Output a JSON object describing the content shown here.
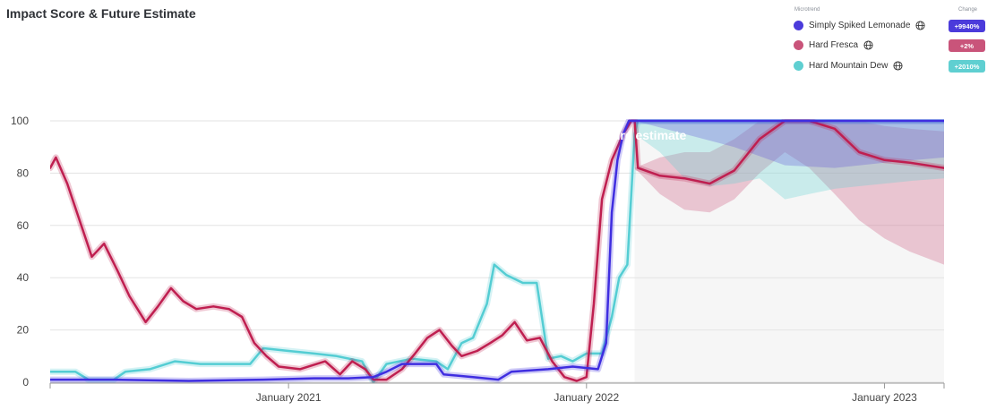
{
  "header": {
    "title": "Impact Score & Future Estimate"
  },
  "legend": {
    "header_name": "Microtrend",
    "header_change": "Change",
    "items": [
      {
        "label": "Simply Spiked Lemonade",
        "change": "+9940%",
        "color": "#4b3bdb",
        "badge_color": "#4b3bdb"
      },
      {
        "label": "Hard Fresca",
        "change": "+2%",
        "color": "#c9547a",
        "badge_color": "#c9547a"
      },
      {
        "label": "Hard Mountain Dew",
        "change": "+2010%",
        "color": "#5fcfd1",
        "badge_color": "#5fcfd1"
      }
    ]
  },
  "chart_data": {
    "type": "line",
    "title": "Impact Score & Future Estimate",
    "xlabel": "",
    "ylabel": "",
    "ylim": [
      0,
      100
    ],
    "y_ticks": [
      0,
      20,
      40,
      60,
      80,
      100
    ],
    "x_range": [
      "2020-03-15",
      "2023-03-15"
    ],
    "x_ticks": [
      {
        "date": "2021-01-01",
        "label": "January 2021"
      },
      {
        "date": "2022-01-01",
        "label": "January 2022"
      },
      {
        "date": "2023-01-01",
        "label": "January 2023"
      }
    ],
    "grid": true,
    "legend_position": "top-right",
    "future_estimate": {
      "label": "Future estimate",
      "start": "2022-03-01"
    },
    "series": [
      {
        "name": "Simply Spiked Lemonade",
        "color": "#3f2ee0",
        "points": [
          [
            "2020-03-15",
            1
          ],
          [
            "2020-06-01",
            1
          ],
          [
            "2020-09-01",
            0.5
          ],
          [
            "2020-12-01",
            1
          ],
          [
            "2021-02-01",
            1.5
          ],
          [
            "2021-03-15",
            1.5
          ],
          [
            "2021-04-15",
            2
          ],
          [
            "2021-05-01",
            4
          ],
          [
            "2021-05-20",
            7
          ],
          [
            "2021-07-01",
            7
          ],
          [
            "2021-07-10",
            3
          ],
          [
            "2021-08-15",
            2
          ],
          [
            "2021-09-15",
            1
          ],
          [
            "2021-10-01",
            4
          ],
          [
            "2021-11-15",
            5
          ],
          [
            "2021-12-15",
            6
          ],
          [
            "2022-01-15",
            5
          ],
          [
            "2022-01-25",
            15
          ],
          [
            "2022-02-01",
            65
          ],
          [
            "2022-02-08",
            85
          ],
          [
            "2022-02-15",
            95
          ],
          [
            "2022-02-22",
            100
          ],
          [
            "2022-03-01",
            100
          ],
          [
            "2022-05-01",
            100
          ],
          [
            "2022-08-01",
            100
          ],
          [
            "2022-11-01",
            100
          ],
          [
            "2023-03-15",
            100
          ]
        ],
        "band_low": [
          [
            "2022-03-01",
            100
          ],
          [
            "2022-05-01",
            95
          ],
          [
            "2022-07-01",
            90
          ],
          [
            "2022-09-01",
            83
          ],
          [
            "2022-11-01",
            82
          ],
          [
            "2023-01-01",
            84
          ],
          [
            "2023-03-15",
            86
          ]
        ],
        "band_high": [
          [
            "2022-03-01",
            100
          ],
          [
            "2022-05-01",
            100
          ],
          [
            "2022-07-01",
            100
          ],
          [
            "2022-09-01",
            100
          ],
          [
            "2022-11-01",
            100
          ],
          [
            "2023-01-01",
            100
          ],
          [
            "2023-03-15",
            100
          ]
        ]
      },
      {
        "name": "Hard Fresca",
        "color": "#bf1f50",
        "points": [
          [
            "2020-03-15",
            82
          ],
          [
            "2020-03-22",
            86
          ],
          [
            "2020-04-05",
            76
          ],
          [
            "2020-04-20",
            62
          ],
          [
            "2020-05-05",
            48
          ],
          [
            "2020-05-20",
            53
          ],
          [
            "2020-06-05",
            43
          ],
          [
            "2020-06-20",
            33
          ],
          [
            "2020-07-10",
            23
          ],
          [
            "2020-07-25",
            29
          ],
          [
            "2020-08-10",
            36
          ],
          [
            "2020-08-25",
            31
          ],
          [
            "2020-09-10",
            28
          ],
          [
            "2020-10-01",
            29
          ],
          [
            "2020-10-20",
            28
          ],
          [
            "2020-11-05",
            25
          ],
          [
            "2020-11-20",
            15
          ],
          [
            "2020-12-05",
            10
          ],
          [
            "2020-12-20",
            6
          ],
          [
            "2021-01-15",
            5
          ],
          [
            "2021-02-15",
            8
          ],
          [
            "2021-03-05",
            3
          ],
          [
            "2021-03-20",
            8
          ],
          [
            "2021-04-05",
            5
          ],
          [
            "2021-04-15",
            1
          ],
          [
            "2021-05-01",
            1
          ],
          [
            "2021-05-20",
            5
          ],
          [
            "2021-06-05",
            11
          ],
          [
            "2021-06-20",
            17
          ],
          [
            "2021-07-05",
            20
          ],
          [
            "2021-07-20",
            14
          ],
          [
            "2021-08-01",
            10
          ],
          [
            "2021-08-20",
            12
          ],
          [
            "2021-09-05",
            15
          ],
          [
            "2021-09-20",
            18
          ],
          [
            "2021-10-05",
            23
          ],
          [
            "2021-10-20",
            16
          ],
          [
            "2021-11-05",
            17
          ],
          [
            "2021-11-20",
            8
          ],
          [
            "2021-12-05",
            2
          ],
          [
            "2021-12-20",
            0.5
          ],
          [
            "2022-01-01",
            2
          ],
          [
            "2022-01-10",
            30
          ],
          [
            "2022-01-20",
            70
          ],
          [
            "2022-02-01",
            85
          ],
          [
            "2022-02-15",
            95
          ],
          [
            "2022-02-25",
            100
          ],
          [
            "2022-03-01",
            100
          ],
          [
            "2022-03-05",
            82
          ],
          [
            "2022-04-01",
            79
          ],
          [
            "2022-05-01",
            78
          ],
          [
            "2022-06-01",
            76
          ],
          [
            "2022-07-01",
            81
          ],
          [
            "2022-08-01",
            93
          ],
          [
            "2022-09-01",
            100
          ],
          [
            "2022-10-01",
            100
          ],
          [
            "2022-11-01",
            97
          ],
          [
            "2022-12-01",
            88
          ],
          [
            "2023-01-01",
            85
          ],
          [
            "2023-02-01",
            84
          ],
          [
            "2023-03-15",
            82
          ]
        ],
        "band_low": [
          [
            "2022-03-01",
            82
          ],
          [
            "2022-04-01",
            72
          ],
          [
            "2022-05-01",
            66
          ],
          [
            "2022-06-01",
            65
          ],
          [
            "2022-07-01",
            70
          ],
          [
            "2022-08-01",
            80
          ],
          [
            "2022-09-01",
            88
          ],
          [
            "2022-10-01",
            82
          ],
          [
            "2022-11-01",
            72
          ],
          [
            "2022-12-01",
            62
          ],
          [
            "2023-01-01",
            55
          ],
          [
            "2023-02-01",
            50
          ],
          [
            "2023-03-15",
            45
          ]
        ],
        "band_high": [
          [
            "2022-03-01",
            82
          ],
          [
            "2022-04-01",
            86
          ],
          [
            "2022-05-01",
            88
          ],
          [
            "2022-06-01",
            88
          ],
          [
            "2022-07-01",
            93
          ],
          [
            "2022-08-01",
            100
          ],
          [
            "2022-09-01",
            100
          ],
          [
            "2022-10-01",
            100
          ],
          [
            "2022-11-01",
            100
          ],
          [
            "2022-12-01",
            100
          ],
          [
            "2023-01-01",
            98
          ],
          [
            "2023-02-01",
            97
          ],
          [
            "2023-03-15",
            96
          ]
        ]
      },
      {
        "name": "Hard Mountain Dew",
        "color": "#54cdd3",
        "points": [
          [
            "2020-03-15",
            4
          ],
          [
            "2020-04-15",
            4
          ],
          [
            "2020-05-01",
            1
          ],
          [
            "2020-06-01",
            1
          ],
          [
            "2020-06-15",
            4
          ],
          [
            "2020-07-15",
            5
          ],
          [
            "2020-08-15",
            8
          ],
          [
            "2020-09-15",
            7
          ],
          [
            "2020-10-15",
            7
          ],
          [
            "2020-11-15",
            7
          ],
          [
            "2020-12-01",
            13
          ],
          [
            "2021-01-01",
            12
          ],
          [
            "2021-02-01",
            11
          ],
          [
            "2021-03-01",
            10
          ],
          [
            "2021-04-01",
            8
          ],
          [
            "2021-04-15",
            0
          ],
          [
            "2021-05-01",
            7
          ],
          [
            "2021-06-01",
            9
          ],
          [
            "2021-07-01",
            8
          ],
          [
            "2021-07-15",
            5
          ],
          [
            "2021-08-01",
            15
          ],
          [
            "2021-08-15",
            17
          ],
          [
            "2021-09-01",
            30
          ],
          [
            "2021-09-10",
            45
          ],
          [
            "2021-09-25",
            41
          ],
          [
            "2021-10-15",
            38
          ],
          [
            "2021-11-01",
            38
          ],
          [
            "2021-11-15",
            9
          ],
          [
            "2021-12-01",
            10
          ],
          [
            "2021-12-15",
            8
          ],
          [
            "2022-01-01",
            11
          ],
          [
            "2022-01-20",
            11
          ],
          [
            "2022-02-01",
            25
          ],
          [
            "2022-02-10",
            40
          ],
          [
            "2022-02-20",
            45
          ],
          [
            "2022-03-01",
            95
          ],
          [
            "2022-03-05",
            100
          ],
          [
            "2022-05-01",
            100
          ],
          [
            "2022-08-01",
            100
          ],
          [
            "2022-10-01",
            100
          ],
          [
            "2023-03-15",
            100
          ]
        ],
        "band_low": [
          [
            "2022-03-01",
            95
          ],
          [
            "2022-04-01",
            88
          ],
          [
            "2022-05-01",
            78
          ],
          [
            "2022-06-01",
            75
          ],
          [
            "2022-07-01",
            76
          ],
          [
            "2022-08-01",
            78
          ],
          [
            "2022-09-01",
            70
          ],
          [
            "2022-10-01",
            72
          ],
          [
            "2022-11-01",
            74
          ],
          [
            "2022-12-01",
            75
          ],
          [
            "2023-01-01",
            76
          ],
          [
            "2023-02-01",
            77
          ],
          [
            "2023-03-15",
            78
          ]
        ],
        "band_high": [
          [
            "2022-03-01",
            100
          ],
          [
            "2022-06-01",
            100
          ],
          [
            "2022-09-01",
            100
          ],
          [
            "2022-12-01",
            100
          ],
          [
            "2023-03-15",
            100
          ]
        ]
      }
    ]
  }
}
